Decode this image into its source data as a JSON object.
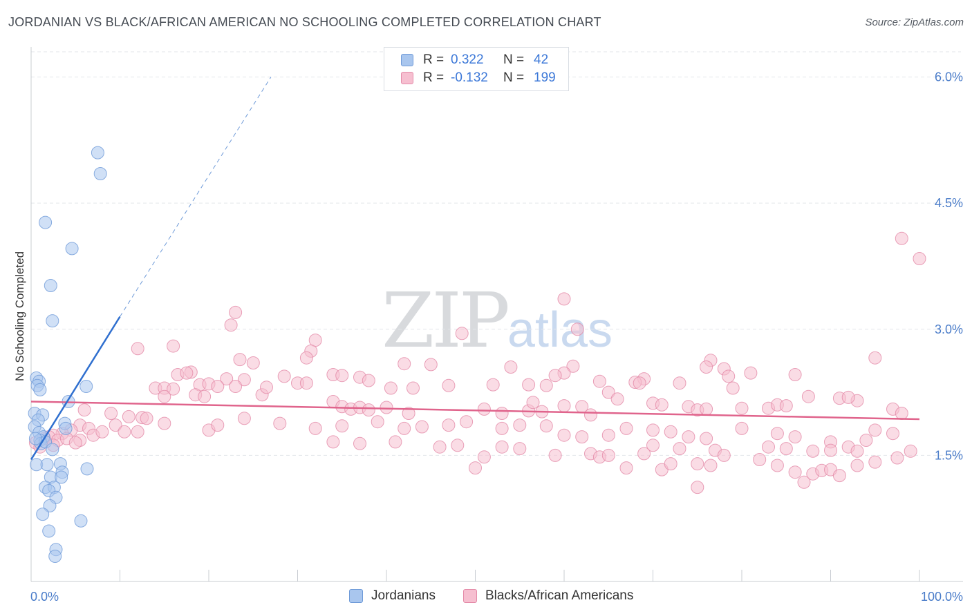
{
  "header": {
    "title": "JORDANIAN VS BLACK/AFRICAN AMERICAN NO SCHOOLING COMPLETED CORRELATION CHART",
    "source": "Source: ZipAtlas.com"
  },
  "watermark": {
    "zip": "ZIP",
    "atlas": "atlas"
  },
  "legend": {
    "rows": [
      {
        "r_label": "R =",
        "r_value": "0.322",
        "n_label": "N =",
        "n_value": "42",
        "color": "#a9c6ee",
        "border": "#6e9ad8"
      },
      {
        "r_label": "R =",
        "r_value": "-0.132",
        "n_label": "N =",
        "n_value": "199",
        "color": "#f6bfd0",
        "border": "#e48aa8"
      }
    ]
  },
  "bottom_legend": {
    "items": [
      {
        "label": "Jordanians",
        "color": "#a9c6ee",
        "border": "#6e9ad8"
      },
      {
        "label": "Blacks/African Americans",
        "color": "#f6bfd0",
        "border": "#e48aa8"
      }
    ]
  },
  "chart_data": {
    "type": "scatter",
    "title": "JORDANIAN VS BLACK/AFRICAN AMERICAN NO SCHOOLING COMPLETED CORRELATION CHART",
    "xlabel": "",
    "ylabel": "No Schooling Completed",
    "xlim": [
      0,
      100
    ],
    "ylim": [
      0,
      6.3
    ],
    "y_ticks": [
      {
        "value": 1.5,
        "label": "1.5%"
      },
      {
        "value": 3.0,
        "label": "3.0%"
      },
      {
        "value": 4.5,
        "label": "4.5%"
      },
      {
        "value": 6.0,
        "label": "6.0%"
      }
    ],
    "x_tick_labels": [
      {
        "value": 0,
        "label": "0.0%"
      },
      {
        "value": 100,
        "label": "100.0%"
      }
    ],
    "x_minor_ticks": [
      0,
      10,
      20,
      30,
      40,
      50,
      60,
      70,
      80,
      90,
      100
    ],
    "grid": true,
    "legend_position": "top-center",
    "series": [
      {
        "name": "Jordanians",
        "color": "#a9c6ee",
        "stroke": "#6e9ad8",
        "trend_color": "#2f6fcf",
        "r": 0.322,
        "n": 42,
        "trend": {
          "x0": 0,
          "y0": 1.45,
          "x1": 10,
          "y1": 3.15,
          "dashed_to_x": 27,
          "dashed_to_y": 6.0
        },
        "points": [
          [
            7.5,
            5.1
          ],
          [
            7.8,
            4.85
          ],
          [
            1.6,
            4.27
          ],
          [
            4.6,
            3.96
          ],
          [
            2.2,
            3.52
          ],
          [
            2.4,
            3.1
          ],
          [
            0.6,
            2.42
          ],
          [
            0.9,
            2.38
          ],
          [
            0.7,
            2.33
          ],
          [
            1.0,
            2.28
          ],
          [
            6.2,
            2.32
          ],
          [
            4.2,
            2.14
          ],
          [
            0.4,
            2.0
          ],
          [
            1.3,
            1.98
          ],
          [
            0.8,
            1.92
          ],
          [
            3.8,
            1.88
          ],
          [
            0.4,
            1.84
          ],
          [
            3.9,
            1.82
          ],
          [
            0.9,
            1.77
          ],
          [
            1.4,
            1.72
          ],
          [
            1.0,
            1.68
          ],
          [
            1.1,
            1.64
          ],
          [
            1.6,
            1.66
          ],
          [
            2.4,
            1.57
          ],
          [
            0.6,
            1.39
          ],
          [
            1.8,
            1.39
          ],
          [
            3.3,
            1.4
          ],
          [
            3.5,
            1.3
          ],
          [
            6.3,
            1.34
          ],
          [
            2.2,
            1.24
          ],
          [
            3.4,
            1.24
          ],
          [
            1.6,
            1.12
          ],
          [
            2.6,
            1.12
          ],
          [
            2.0,
            1.08
          ],
          [
            2.8,
            1.0
          ],
          [
            2.1,
            0.9
          ],
          [
            1.3,
            0.8
          ],
          [
            5.6,
            0.72
          ],
          [
            2.0,
            0.6
          ],
          [
            2.8,
            0.38
          ],
          [
            2.7,
            0.3
          ],
          [
            0.5,
            1.7
          ]
        ]
      },
      {
        "name": "Blacks/African Americans",
        "color": "#f6bfd0",
        "stroke": "#e48aa8",
        "trend_color": "#e0648c",
        "r": -0.132,
        "n": 199,
        "trend": {
          "x0": 0,
          "y0": 2.14,
          "x1": 100,
          "y1": 1.93
        },
        "points": [
          [
            98,
            4.08
          ],
          [
            100,
            3.84
          ],
          [
            60,
            3.36
          ],
          [
            23,
            3.2
          ],
          [
            22.5,
            3.05
          ],
          [
            61.5,
            3.0
          ],
          [
            48.5,
            2.95
          ],
          [
            32,
            2.87
          ],
          [
            16,
            2.8
          ],
          [
            12,
            2.77
          ],
          [
            31.5,
            2.74
          ],
          [
            31,
            2.66
          ],
          [
            23.5,
            2.64
          ],
          [
            25,
            2.6
          ],
          [
            42,
            2.59
          ],
          [
            45,
            2.58
          ],
          [
            76.5,
            2.63
          ],
          [
            95,
            2.66
          ],
          [
            61,
            2.56
          ],
          [
            54,
            2.55
          ],
          [
            76,
            2.55
          ],
          [
            78,
            2.53
          ],
          [
            60,
            2.48
          ],
          [
            78.5,
            2.44
          ],
          [
            16.5,
            2.46
          ],
          [
            18,
            2.49
          ],
          [
            17.5,
            2.48
          ],
          [
            28.5,
            2.44
          ],
          [
            24,
            2.4
          ],
          [
            22,
            2.41
          ],
          [
            34,
            2.46
          ],
          [
            35,
            2.45
          ],
          [
            37,
            2.43
          ],
          [
            81,
            2.48
          ],
          [
            86,
            2.46
          ],
          [
            59,
            2.45
          ],
          [
            69,
            2.41
          ],
          [
            64,
            2.38
          ],
          [
            14,
            2.3
          ],
          [
            15,
            2.3
          ],
          [
            16,
            2.29
          ],
          [
            19,
            2.34
          ],
          [
            20,
            2.35
          ],
          [
            21,
            2.32
          ],
          [
            23,
            2.32
          ],
          [
            26,
            2.22
          ],
          [
            26.5,
            2.31
          ],
          [
            30,
            2.36
          ],
          [
            31,
            2.36
          ],
          [
            38,
            2.39
          ],
          [
            43,
            2.3
          ],
          [
            47,
            2.33
          ],
          [
            52,
            2.34
          ],
          [
            56,
            2.34
          ],
          [
            58,
            2.33
          ],
          [
            65,
            2.25
          ],
          [
            66,
            2.17
          ],
          [
            68,
            2.37
          ],
          [
            68.5,
            2.36
          ],
          [
            73,
            2.36
          ],
          [
            79,
            2.3
          ],
          [
            87.5,
            2.2
          ],
          [
            93,
            2.15
          ],
          [
            15,
            2.2
          ],
          [
            18.5,
            2.22
          ],
          [
            19.5,
            2.2
          ],
          [
            34,
            2.14
          ],
          [
            35,
            2.08
          ],
          [
            36,
            2.05
          ],
          [
            37,
            2.07
          ],
          [
            38,
            2.04
          ],
          [
            40,
            2.07
          ],
          [
            40.5,
            2.3
          ],
          [
            42.5,
            2.0
          ],
          [
            51,
            2.05
          ],
          [
            53,
            2.0
          ],
          [
            56,
            2.03
          ],
          [
            56.5,
            2.13
          ],
          [
            57.5,
            2.02
          ],
          [
            60,
            2.09
          ],
          [
            62,
            2.08
          ],
          [
            63,
            1.98
          ],
          [
            70,
            2.12
          ],
          [
            71,
            2.1
          ],
          [
            74,
            2.08
          ],
          [
            75,
            2.04
          ],
          [
            76,
            2.05
          ],
          [
            80,
            2.06
          ],
          [
            83,
            2.06
          ],
          [
            84,
            2.1
          ],
          [
            85,
            2.09
          ],
          [
            91,
            2.18
          ],
          [
            92,
            2.19
          ],
          [
            97,
            2.05
          ],
          [
            98,
            2.0
          ],
          [
            11,
            1.96
          ],
          [
            12.5,
            1.95
          ],
          [
            13,
            1.94
          ],
          [
            9,
            2.0
          ],
          [
            6,
            2.04
          ],
          [
            5.5,
            1.86
          ],
          [
            6.5,
            1.82
          ],
          [
            4.5,
            1.8
          ],
          [
            3.5,
            1.76
          ],
          [
            2.5,
            1.74
          ],
          [
            1.5,
            1.7
          ],
          [
            2.0,
            1.72
          ],
          [
            3.0,
            1.68
          ],
          [
            4.0,
            1.7
          ],
          [
            5.5,
            1.68
          ],
          [
            7.0,
            1.74
          ],
          [
            8.0,
            1.78
          ],
          [
            9.5,
            1.86
          ],
          [
            10.5,
            1.78
          ],
          [
            12.0,
            1.78
          ],
          [
            15,
            1.88
          ],
          [
            20,
            1.8
          ],
          [
            21,
            1.86
          ],
          [
            24,
            1.94
          ],
          [
            28,
            1.88
          ],
          [
            32,
            1.82
          ],
          [
            35,
            1.85
          ],
          [
            39,
            1.9
          ],
          [
            42,
            1.82
          ],
          [
            44,
            1.84
          ],
          [
            47,
            1.86
          ],
          [
            49,
            1.9
          ],
          [
            53,
            1.82
          ],
          [
            55,
            1.86
          ],
          [
            58,
            1.85
          ],
          [
            60,
            1.74
          ],
          [
            62,
            1.72
          ],
          [
            65,
            1.74
          ],
          [
            67,
            1.82
          ],
          [
            70,
            1.8
          ],
          [
            72,
            1.78
          ],
          [
            74,
            1.72
          ],
          [
            76,
            1.7
          ],
          [
            80,
            1.82
          ],
          [
            84,
            1.76
          ],
          [
            86,
            1.72
          ],
          [
            90,
            1.66
          ],
          [
            92,
            1.6
          ],
          [
            94,
            1.68
          ],
          [
            95,
            1.8
          ],
          [
            97,
            1.76
          ],
          [
            0.5,
            1.65
          ],
          [
            1.0,
            1.6
          ],
          [
            2.5,
            1.62
          ],
          [
            5.0,
            1.65
          ],
          [
            34,
            1.66
          ],
          [
            37,
            1.64
          ],
          [
            41,
            1.66
          ],
          [
            46,
            1.6
          ],
          [
            48,
            1.62
          ],
          [
            53,
            1.6
          ],
          [
            55,
            1.58
          ],
          [
            59,
            1.5
          ],
          [
            63,
            1.52
          ],
          [
            64,
            1.48
          ],
          [
            70,
            1.62
          ],
          [
            73,
            1.58
          ],
          [
            77,
            1.56
          ],
          [
            78,
            1.5
          ],
          [
            82,
            1.45
          ],
          [
            83,
            1.6
          ],
          [
            85,
            1.58
          ],
          [
            88,
            1.55
          ],
          [
            90,
            1.56
          ],
          [
            93,
            1.55
          ],
          [
            99,
            1.55
          ],
          [
            97.5,
            1.47
          ],
          [
            95,
            1.42
          ],
          [
            93,
            1.38
          ],
          [
            51,
            1.48
          ],
          [
            50,
            1.35
          ],
          [
            67,
            1.35
          ],
          [
            71,
            1.33
          ],
          [
            72,
            1.4
          ],
          [
            75,
            1.4
          ],
          [
            76.5,
            1.38
          ],
          [
            84,
            1.38
          ],
          [
            86,
            1.3
          ],
          [
            88,
            1.28
          ],
          [
            89,
            1.32
          ],
          [
            90,
            1.33
          ],
          [
            91,
            1.26
          ],
          [
            87,
            1.18
          ],
          [
            75,
            1.12
          ],
          [
            65,
            1.5
          ],
          [
            69,
            1.52
          ]
        ]
      }
    ]
  }
}
